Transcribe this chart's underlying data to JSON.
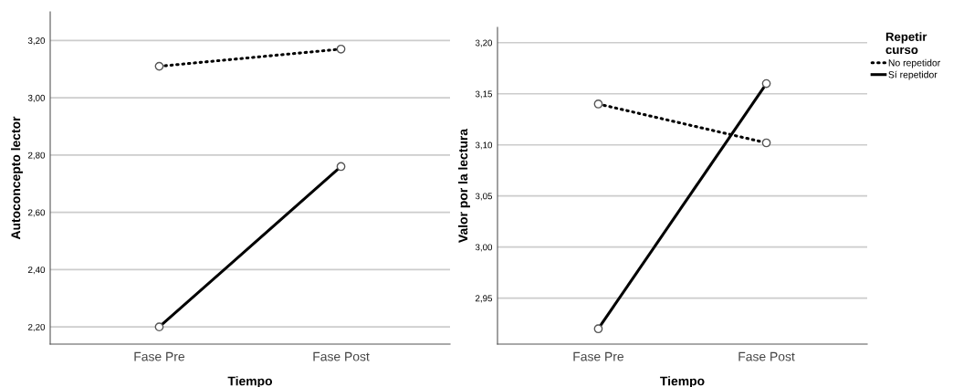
{
  "chart_data": [
    {
      "type": "line",
      "xlabel": "Tiempo",
      "ylabel": "Autoconcepto lector",
      "categories": [
        "Fase Pre",
        "Fase Post"
      ],
      "series": [
        {
          "color": "#000000",
          "line_style": "dotted",
          "values": [
            3.11,
            3.17
          ]
        },
        {
          "color": "#000000",
          "line_style": "solid",
          "values": [
            2.2,
            2.76
          ]
        }
      ],
      "ylim": [
        2.14,
        3.3
      ],
      "yticks": [
        {
          "value": 2.2,
          "label": "2,20"
        },
        {
          "value": 2.4,
          "label": "2,40"
        },
        {
          "value": 2.6,
          "label": "2,60"
        },
        {
          "value": 2.8,
          "label": "2,80"
        },
        {
          "value": 3.0,
          "label": "3,00"
        },
        {
          "value": 3.2,
          "label": "3,20"
        }
      ],
      "grid": "y",
      "marker": "circle",
      "legend": false
    },
    {
      "type": "line",
      "xlabel": "Tiempo",
      "ylabel": "Valor por la lectura",
      "legend_title": "Repetir\ncurso",
      "categories": [
        "Fase Pre",
        "Fase Post"
      ],
      "series": [
        {
          "name": "No repetidor",
          "color": "#000000",
          "line_style": "dotted",
          "values": [
            3.14,
            3.102
          ]
        },
        {
          "name": "Sí repetidor",
          "color": "#000000",
          "line_style": "solid",
          "values": [
            2.92,
            3.16
          ]
        }
      ],
      "ylim": [
        2.905,
        3.215
      ],
      "yticks": [
        {
          "value": 2.95,
          "label": "2,95"
        },
        {
          "value": 3.0,
          "label": "3,00"
        },
        {
          "value": 3.05,
          "label": "3,05"
        },
        {
          "value": 3.1,
          "label": "3,10"
        },
        {
          "value": 3.15,
          "label": "3,15"
        },
        {
          "value": 3.2,
          "label": "3,20"
        }
      ],
      "grid": "y",
      "marker": "circle",
      "legend": "right"
    }
  ]
}
